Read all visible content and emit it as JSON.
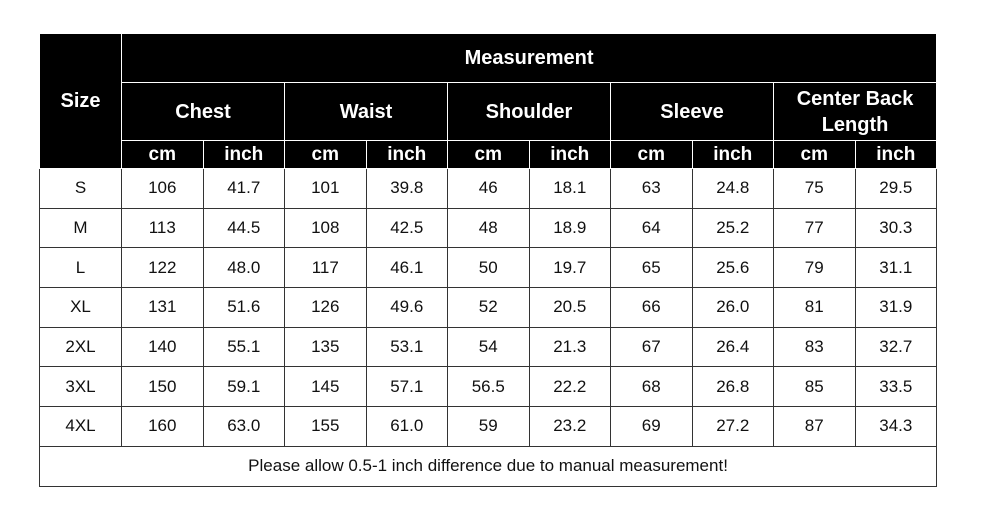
{
  "table": {
    "size_header": "Size",
    "measurement_header": "Measurement",
    "groups": [
      {
        "name": "Chest",
        "units": [
          "cm",
          "inch"
        ]
      },
      {
        "name": "Waist",
        "units": [
          "cm",
          "inch"
        ]
      },
      {
        "name": "Shoulder",
        "units": [
          "cm",
          "inch"
        ]
      },
      {
        "name": "Sleeve",
        "units": [
          "cm",
          "inch"
        ]
      },
      {
        "name": "Center Back Length",
        "units": [
          "cm",
          "inch"
        ]
      }
    ],
    "rows": [
      [
        "S",
        "106",
        "41.7",
        "101",
        "39.8",
        "46",
        "18.1",
        "63",
        "24.8",
        "75",
        "29.5"
      ],
      [
        "M",
        "113",
        "44.5",
        "108",
        "42.5",
        "48",
        "18.9",
        "64",
        "25.2",
        "77",
        "30.3"
      ],
      [
        "L",
        "122",
        "48.0",
        "117",
        "46.1",
        "50",
        "19.7",
        "65",
        "25.6",
        "79",
        "31.1"
      ],
      [
        "XL",
        "131",
        "51.6",
        "126",
        "49.6",
        "52",
        "20.5",
        "66",
        "26.0",
        "81",
        "31.9"
      ],
      [
        "2XL",
        "140",
        "55.1",
        "135",
        "53.1",
        "54",
        "21.3",
        "67",
        "26.4",
        "83",
        "32.7"
      ],
      [
        "3XL",
        "150",
        "59.1",
        "145",
        "57.1",
        "56.5",
        "22.2",
        "68",
        "26.8",
        "85",
        "33.5"
      ],
      [
        "4XL",
        "160",
        "63.0",
        "155",
        "61.0",
        "59",
        "23.2",
        "69",
        "27.2",
        "87",
        "34.3"
      ]
    ],
    "note": "Please allow 0.5-1 inch difference due to manual measurement!"
  }
}
